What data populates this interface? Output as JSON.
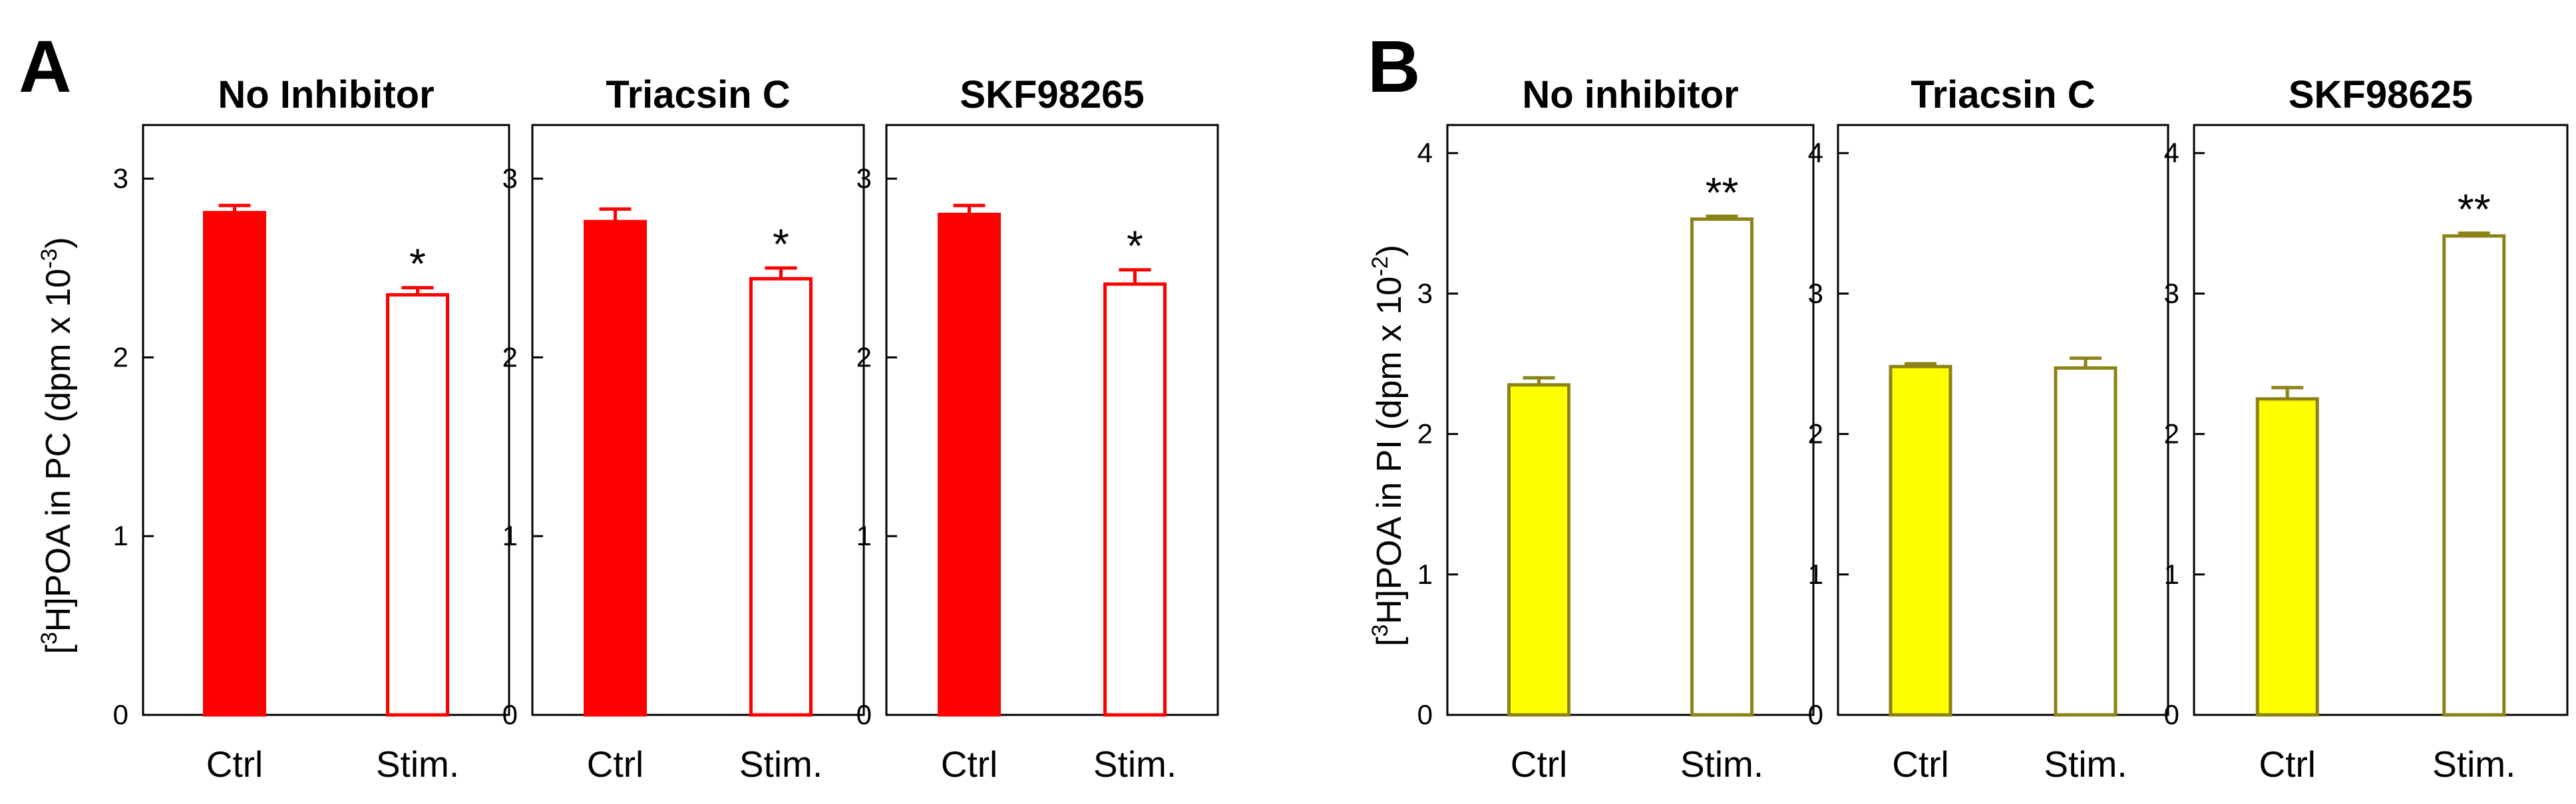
{
  "figure": {
    "panels": [
      {
        "letter": "A",
        "ylabel_pre": "[",
        "ylabel_sup": "3",
        "ylabel_mid": "H]POA in PC (dpm x 10",
        "ylabel_exp": "-3",
        "ylabel_post": ")"
      },
      {
        "letter": "B",
        "ylabel_pre": "[",
        "ylabel_sup": "3",
        "ylabel_mid": "H]POA in PI (dpm x 10",
        "ylabel_exp": "-2",
        "ylabel_post": ")"
      }
    ]
  },
  "colors": {
    "red": "#ff0000",
    "yellow_fill": "#ffff00",
    "olive": "#8c8218",
    "axis": "#000000"
  },
  "chart_data": [
    {
      "type": "bar",
      "panel": "A",
      "title": "No Inhibitor",
      "categories": [
        "Ctrl",
        "Stim."
      ],
      "values": [
        2.81,
        2.35
      ],
      "errors": [
        0.04,
        0.04
      ],
      "annotations": [
        "",
        "*"
      ],
      "ylim": [
        0,
        3.3
      ],
      "yticks": [
        0,
        1,
        2,
        3
      ],
      "ylabel": "[3H]POA in PC (dpm x 10-3)",
      "color": "red"
    },
    {
      "type": "bar",
      "panel": "A",
      "title": "Triacsin C",
      "categories": [
        "Ctrl",
        "Stim."
      ],
      "values": [
        2.76,
        2.44
      ],
      "errors": [
        0.07,
        0.06
      ],
      "annotations": [
        "",
        "*"
      ],
      "ylim": [
        0,
        3.3
      ],
      "yticks": [
        0,
        1,
        2,
        3
      ],
      "color": "red"
    },
    {
      "type": "bar",
      "panel": "A",
      "title": "SKF98265",
      "categories": [
        "Ctrl",
        "Stim."
      ],
      "values": [
        2.8,
        2.41
      ],
      "errors": [
        0.05,
        0.08
      ],
      "annotations": [
        "",
        "*"
      ],
      "ylim": [
        0,
        3.3
      ],
      "yticks": [
        0,
        1,
        2,
        3
      ],
      "color": "red"
    },
    {
      "type": "bar",
      "panel": "B",
      "title": "No inhibitor",
      "categories": [
        "Ctrl",
        "Stim."
      ],
      "values": [
        2.35,
        3.53
      ],
      "errors": [
        0.05,
        0.02
      ],
      "annotations": [
        "",
        "**"
      ],
      "ylim": [
        0,
        4.2
      ],
      "yticks": [
        0,
        1,
        2,
        3,
        4
      ],
      "ylabel": "[3H]POA in PI (dpm x 10-2)",
      "color": "yellow"
    },
    {
      "type": "bar",
      "panel": "B",
      "title": "Triacsin C",
      "categories": [
        "Ctrl",
        "Stim."
      ],
      "values": [
        2.48,
        2.47
      ],
      "errors": [
        0.02,
        0.07
      ],
      "annotations": [
        "",
        ""
      ],
      "ylim": [
        0,
        4.2
      ],
      "yticks": [
        0,
        1,
        2,
        3,
        4
      ],
      "color": "yellow"
    },
    {
      "type": "bar",
      "panel": "B",
      "title": "SKF98625",
      "categories": [
        "Ctrl",
        "Stim."
      ],
      "values": [
        2.25,
        3.41
      ],
      "errors": [
        0.08,
        0.02
      ],
      "annotations": [
        "",
        "**"
      ],
      "ylim": [
        0,
        4.2
      ],
      "yticks": [
        0,
        1,
        2,
        3,
        4
      ],
      "color": "yellow"
    }
  ]
}
